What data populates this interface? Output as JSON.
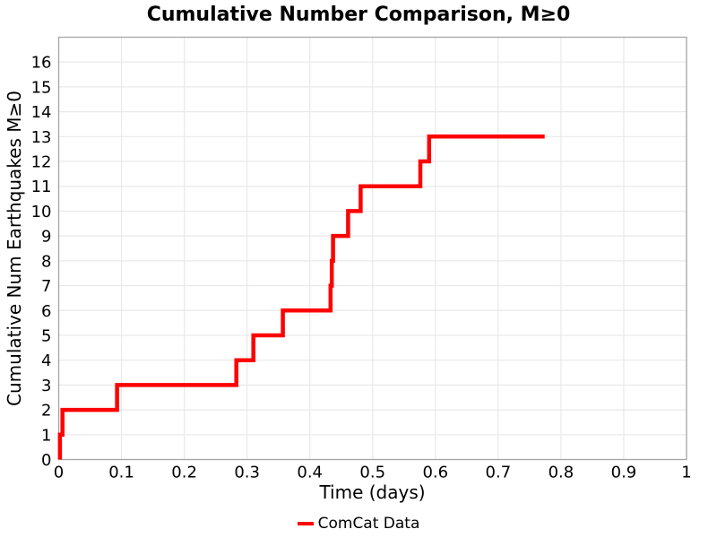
{
  "chart_data": {
    "type": "line",
    "subtype": "cumulative-step",
    "title": "Cumulative Number Comparison, M≥0",
    "xlabel": "Time (days)",
    "ylabel": "Cumulative Num Earthquakes M≥0",
    "xlim": [
      0,
      1
    ],
    "ylim": [
      0,
      17
    ],
    "grid": true,
    "legend_position": "lower-center-outside",
    "xticks": {
      "values": [
        0,
        0.1,
        0.2,
        0.3,
        0.4,
        0.5,
        0.6,
        0.7,
        0.8,
        0.9,
        1
      ],
      "labels": [
        "0",
        "0.1",
        "0.2",
        "0.3",
        "0.4",
        "0.5",
        "0.6",
        "0.7",
        "0.8",
        "0.9",
        "1"
      ]
    },
    "yticks": {
      "values": [
        0,
        1,
        2,
        3,
        4,
        5,
        6,
        7,
        8,
        9,
        10,
        11,
        12,
        13,
        14,
        15,
        16
      ],
      "labels": [
        "0",
        "1",
        "2",
        "3",
        "4",
        "5",
        "6",
        "7",
        "8",
        "9",
        "10",
        "11",
        "12",
        "13",
        "14",
        "15",
        "16"
      ]
    },
    "colors": {
      "series": "#ff0000",
      "grid": "#e9e9e9",
      "border": "#a6a6a6",
      "text": "#000000",
      "background": "#ffffff"
    },
    "series": [
      {
        "name": "ComCat Data",
        "color": "#ff0000",
        "line_width": 4.5,
        "step": "post",
        "start_value": 0,
        "event_times": [
          0.002,
          0.006,
          0.093,
          0.283,
          0.31,
          0.357,
          0.433,
          0.435,
          0.437,
          0.461,
          0.481,
          0.576,
          0.59
        ],
        "cumulative": [
          1,
          2,
          3,
          4,
          5,
          6,
          7,
          8,
          9,
          10,
          11,
          12,
          13
        ],
        "end_time": 0.774,
        "final_value": 13
      }
    ]
  }
}
